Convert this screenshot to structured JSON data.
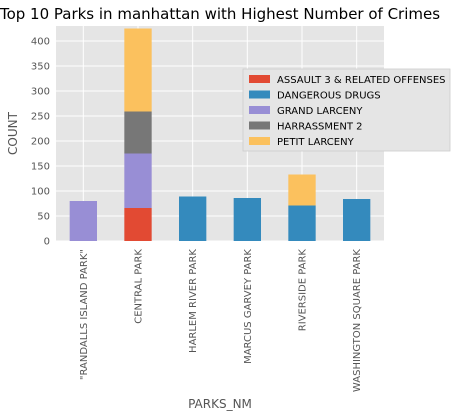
{
  "chart_data": {
    "type": "bar",
    "stacked": true,
    "title": "Top 10 Parks in manhattan with Highest Number of Crimes",
    "xlabel": "PARKS_NM",
    "ylabel": "COUNT",
    "ylim": [
      0,
      430
    ],
    "yticks": [
      0,
      50,
      100,
      150,
      200,
      250,
      300,
      350,
      400
    ],
    "grid": true,
    "legend_position": "center-right",
    "categories": [
      "\"RANDALLS ISLAND PARK\"",
      "CENTRAL PARK",
      "HARLEM RIVER PARK",
      "MARCUS GARVEY PARK",
      "RIVERSIDE PARK",
      "WASHINGTON SQUARE PARK"
    ],
    "series": [
      {
        "name": "ASSAULT 3 & RELATED OFFENSES",
        "color": "#E24A33",
        "values": [
          0,
          66,
          0,
          0,
          0,
          0
        ]
      },
      {
        "name": "DANGEROUS DRUGS",
        "color": "#348ABD",
        "values": [
          0,
          0,
          89,
          86,
          71,
          84
        ]
      },
      {
        "name": "GRAND LARCENY",
        "color": "#988ED5",
        "values": [
          80,
          109,
          0,
          0,
          0,
          0
        ]
      },
      {
        "name": "HARRASSMENT 2",
        "color": "#777777",
        "values": [
          0,
          84,
          0,
          0,
          0,
          0
        ]
      },
      {
        "name": "PETIT LARCENY",
        "color": "#FBC15E",
        "values": [
          0,
          166,
          0,
          0,
          62,
          0
        ]
      }
    ]
  }
}
